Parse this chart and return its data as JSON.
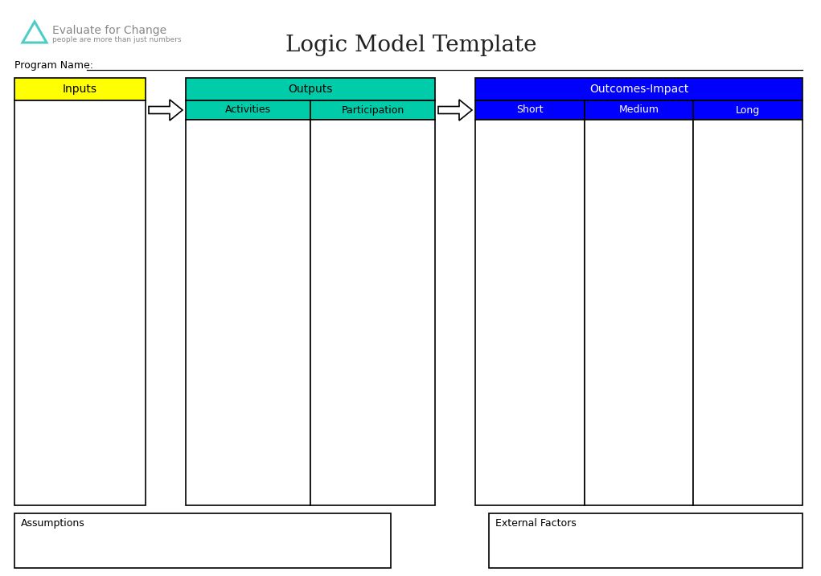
{
  "title": "Logic Model Template",
  "program_label": "Program Name:",
  "bg_color": "#ffffff",
  "title_fontsize": 20,
  "logo_text": "Evaluate for Change",
  "logo_subtext": "people are more than just numbers",
  "logo_color": "#4ecdc4",
  "logo_text_color": "#888888",
  "inputs_label": "Inputs",
  "inputs_bg": "#ffff00",
  "inputs_text_color": "#000000",
  "outputs_label": "Outputs",
  "outputs_bg": "#00ccaa",
  "outputs_text_color": "#000000",
  "activities_label": "Activities",
  "participation_label": "Participation",
  "outcomes_label": "Outcomes-Impact",
  "outcomes_bg": "#0000ff",
  "outcomes_text_color": "#ffffff",
  "short_label": "Short",
  "medium_label": "Medium",
  "long_label": "Long",
  "subrow_bg": "#0000ff",
  "subrow_text_color": "#ffffff",
  "assumptions_label": "Assumptions",
  "external_label": "External Factors",
  "box_edge_color": "#000000",
  "cell_bg": "#ffffff"
}
